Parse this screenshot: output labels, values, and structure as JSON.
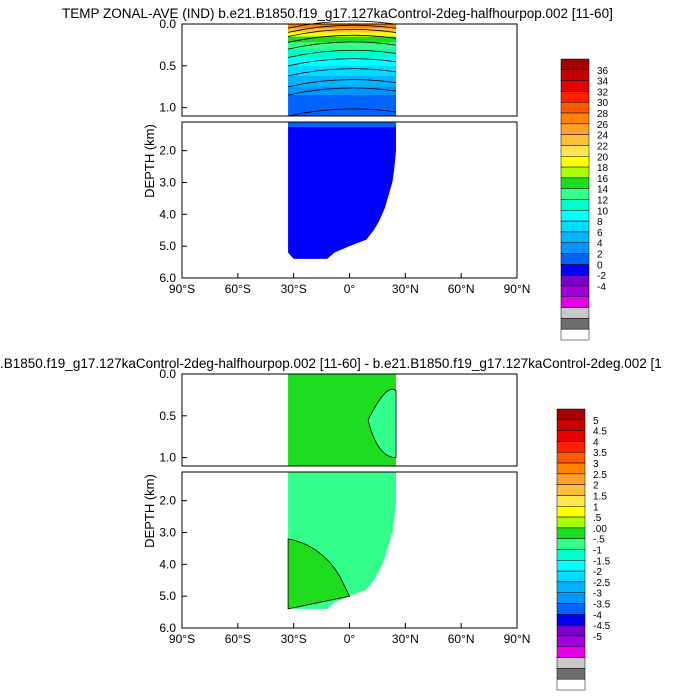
{
  "chart_data": [
    {
      "type": "heatmap",
      "title": "TEMP ZONAL-AVE (IND) b.e21.B1850.f19_g17.127kaControl-2deg-halfhourpop.002 [11-60]",
      "ylabel": "DEPTH (km)",
      "xlim": [
        -90,
        90
      ],
      "ylim": [
        0,
        6
      ],
      "xticks": [
        "90°S",
        "60°S",
        "30°S",
        "0°",
        "30°N",
        "60°N",
        "90°N"
      ],
      "yticks_upper": [
        "0.0",
        "0.5",
        "1.0"
      ],
      "yticks_lower": [
        "2.0",
        "3.0",
        "4.0",
        "5.0",
        "6.0"
      ],
      "colorbar": {
        "labels": [
          "36",
          "34",
          "32",
          "30",
          "28",
          "26",
          "24",
          "22",
          "20",
          "18",
          "16",
          "14",
          "12",
          "10",
          "8",
          "6",
          "4",
          "2",
          "0",
          "-2",
          "-4"
        ],
        "colors": [
          "#a50000",
          "#c80000",
          "#e60000",
          "#ff1e00",
          "#ff5a00",
          "#ff8200",
          "#ffa028",
          "#ffbe3c",
          "#ffe650",
          "#ffff00",
          "#aaff00",
          "#1edc1e",
          "#32ff8c",
          "#00ffc8",
          "#00ffff",
          "#00dcff",
          "#00b4ff",
          "#0096ff",
          "#0064ff",
          "#0000ff",
          "#7800c8",
          "#a000dc",
          "#e600e6",
          "#c8c8c8",
          "#6e6e6e",
          "#ffffff"
        ]
      },
      "upper_bands": [
        {
          "top": 0.05,
          "value": 28
        },
        {
          "top": 0.1,
          "value": 24
        },
        {
          "top": 0.15,
          "value": 20
        },
        {
          "top": 0.22,
          "value": 17
        },
        {
          "top": 0.3,
          "value": 15
        },
        {
          "top": 0.4,
          "value": 13
        },
        {
          "top": 0.5,
          "value": 11
        },
        {
          "top": 0.62,
          "value": 9
        },
        {
          "top": 0.75,
          "value": 7
        },
        {
          "top": 0.85,
          "value": 5
        },
        {
          "top": 1.1,
          "value": 3
        }
      ],
      "lower_value": 1,
      "lat_range": [
        -33,
        25
      ]
    },
    {
      "type": "heatmap",
      "title": ".B1850.f19_g17.127kaControl-2deg-halfhourpop.002 [11-60] - b.e21.B1850.f19_g17.127kaControl-2deg.002 [1",
      "ylabel": "DEPTH (km)",
      "xlim": [
        -90,
        90
      ],
      "ylim": [
        0,
        6
      ],
      "xticks": [
        "90°S",
        "60°S",
        "30°S",
        "0°",
        "30°N",
        "60°N",
        "90°N"
      ],
      "yticks_upper": [
        "0.0",
        "0.5",
        "1.0"
      ],
      "yticks_lower": [
        "2.0",
        "3.0",
        "4.0",
        "5.0",
        "6.0"
      ],
      "colorbar": {
        "labels": [
          "5",
          "4.5",
          "4",
          "3.5",
          "3",
          "2.5",
          "2",
          "1.5",
          "1",
          ".5",
          ".00",
          "-.5",
          "-1",
          "-1.5",
          "-2",
          "-2.5",
          "-3",
          "-3.5",
          "-4",
          "-4.5",
          "-5"
        ],
        "colors": [
          "#a50000",
          "#c80000",
          "#e60000",
          "#ff1e00",
          "#ff5a00",
          "#ff8200",
          "#ffa028",
          "#ffbe3c",
          "#ffe650",
          "#ffff00",
          "#aaff00",
          "#1edc1e",
          "#32ff8c",
          "#00ffc8",
          "#00ffff",
          "#00dcff",
          "#00b4ff",
          "#0096ff",
          "#0064ff",
          "#0000ff",
          "#7800c8",
          "#a000dc",
          "#e600e6",
          "#c8c8c8",
          "#6e6e6e",
          "#ffffff"
        ]
      },
      "base_value": 0.25,
      "anomaly_value": -0.25,
      "lat_range": [
        -33,
        25
      ]
    }
  ]
}
